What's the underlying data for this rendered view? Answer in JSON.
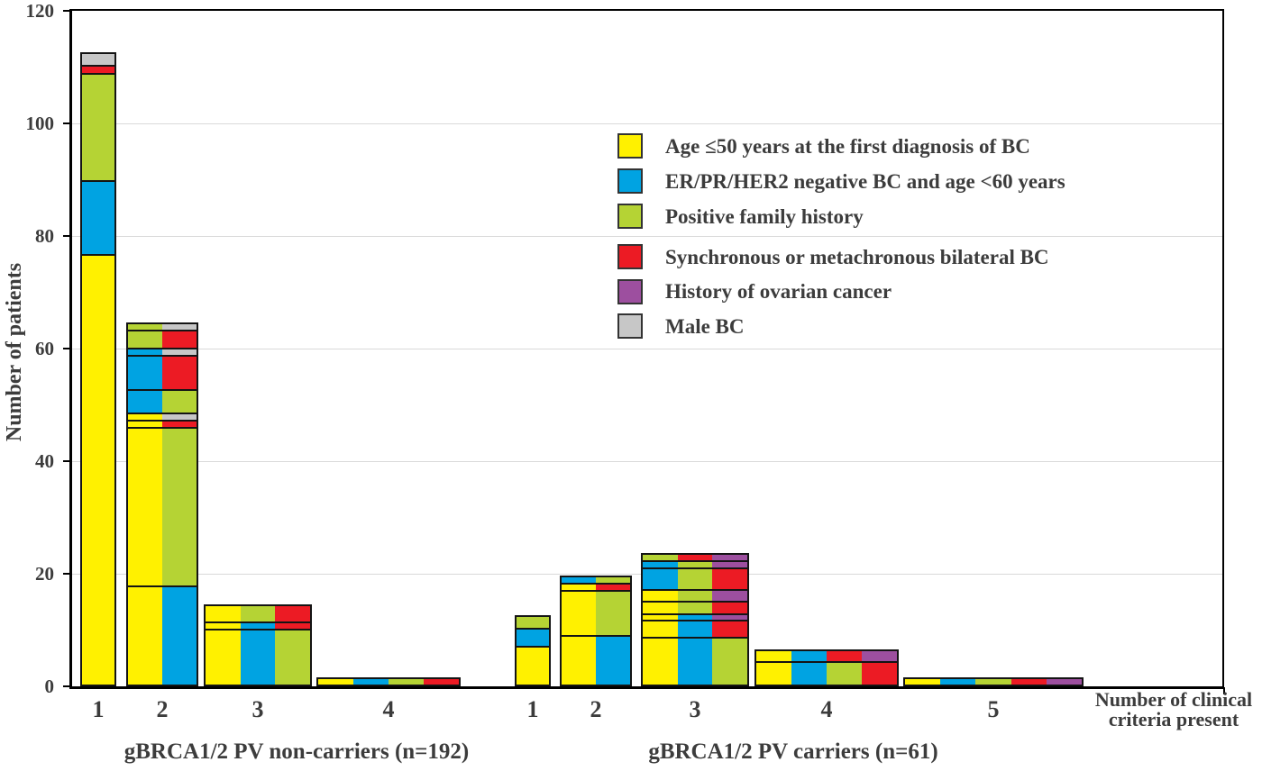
{
  "chart_data": {
    "type": "bar",
    "subtype": "stacked-criteria-combination-bars",
    "title": "",
    "ylabel": "Number of patients",
    "xlabel": "Number of clinical criteria present",
    "xlabel_line1": "Number of clinical",
    "xlabel_line2": "criteria present",
    "ylim": [
      0,
      120
    ],
    "yticks": [
      0,
      20,
      40,
      60,
      80,
      100,
      120
    ],
    "grid": "horizontal",
    "legend_position": "upper-middle",
    "colors": {
      "grid": "#d9d9d9",
      "axis": "#000000",
      "segment_border": "#141414",
      "text": "#3c3c3c"
    },
    "criteria": [
      {
        "key": "age50",
        "label": "Age ≤50 years at the first diagnosis of BC",
        "color": "#FFF100"
      },
      {
        "key": "erprher2",
        "label": "ER/PR/HER2 negative BC and age <60 years",
        "color": "#00A3E2"
      },
      {
        "key": "family",
        "label": "Positive family history",
        "color": "#B5D334"
      },
      {
        "key": "bilateral",
        "label": "Synchronous or metachronous bilateral BC",
        "color": "#EC1B24"
      },
      {
        "key": "ovarian",
        "label": "History of ovarian cancer",
        "color": "#9D4F9F"
      },
      {
        "key": "male",
        "label": "Male BC",
        "color": "#C7C7C7"
      }
    ],
    "groups": [
      {
        "label": "gBRCA1/2 PV non-carriers  (n=192)",
        "bars": [
          {
            "criteria_count": "1",
            "total": 112,
            "bands": [
              {
                "value": 77,
                "combo": [
                  "age50"
                ]
              },
              {
                "value": 13,
                "combo": [
                  "erprher2"
                ]
              },
              {
                "value": 19,
                "combo": [
                  "family"
                ]
              },
              {
                "value": 1,
                "combo": [
                  "bilateral"
                ]
              },
              {
                "value": 2,
                "combo": [
                  "male"
                ]
              }
            ]
          },
          {
            "criteria_count": "2",
            "total": 64,
            "bands": [
              {
                "value": 18,
                "combo": [
                  "age50",
                  "erprher2"
                ]
              },
              {
                "value": 29,
                "combo": [
                  "age50",
                  "family"
                ]
              },
              {
                "value": 1,
                "combo": [
                  "age50",
                  "bilateral"
                ]
              },
              {
                "value": 1,
                "combo": [
                  "age50",
                  "male"
                ]
              },
              {
                "value": 4,
                "combo": [
                  "erprher2",
                  "family"
                ]
              },
              {
                "value": 6,
                "combo": [
                  "erprher2",
                  "bilateral"
                ]
              },
              {
                "value": 1,
                "combo": [
                  "erprher2",
                  "male"
                ]
              },
              {
                "value": 3,
                "combo": [
                  "family",
                  "bilateral"
                ]
              },
              {
                "value": 1,
                "combo": [
                  "family",
                  "male"
                ]
              }
            ]
          },
          {
            "criteria_count": "3",
            "total": 14,
            "bands": [
              {
                "value": 10,
                "combo": [
                  "age50",
                  "erprher2",
                  "family"
                ]
              },
              {
                "value": 1,
                "combo": [
                  "age50",
                  "erprher2",
                  "bilateral"
                ]
              },
              {
                "value": 3,
                "combo": [
                  "age50",
                  "family",
                  "bilateral"
                ]
              }
            ]
          },
          {
            "criteria_count": "4",
            "total": 1,
            "bands": [
              {
                "value": 1,
                "combo": [
                  "age50",
                  "erprher2",
                  "family",
                  "bilateral"
                ]
              }
            ]
          }
        ]
      },
      {
        "label": "gBRCA1/2 PV carriers (n=61)",
        "bars": [
          {
            "criteria_count": "1",
            "total": 12,
            "bands": [
              {
                "value": 7,
                "combo": [
                  "age50"
                ]
              },
              {
                "value": 3,
                "combo": [
                  "erprher2"
                ]
              },
              {
                "value": 2,
                "combo": [
                  "family"
                ]
              }
            ]
          },
          {
            "criteria_count": "2",
            "total": 19,
            "bands": [
              {
                "value": 9,
                "combo": [
                  "age50",
                  "erprher2"
                ]
              },
              {
                "value": 8,
                "combo": [
                  "age50",
                  "family"
                ]
              },
              {
                "value": 1,
                "combo": [
                  "age50",
                  "bilateral"
                ]
              },
              {
                "value": 1,
                "combo": [
                  "erprher2",
                  "family"
                ]
              }
            ]
          },
          {
            "criteria_count": "3",
            "total": 23,
            "bands": [
              {
                "value": 9,
                "combo": [
                  "age50",
                  "erprher2",
                  "family"
                ]
              },
              {
                "value": 3,
                "combo": [
                  "age50",
                  "erprher2",
                  "bilateral"
                ]
              },
              {
                "value": 1,
                "combo": [
                  "age50",
                  "erprher2",
                  "ovarian"
                ]
              },
              {
                "value": 2,
                "combo": [
                  "age50",
                  "family",
                  "bilateral"
                ]
              },
              {
                "value": 2,
                "combo": [
                  "age50",
                  "family",
                  "ovarian"
                ]
              },
              {
                "value": 4,
                "combo": [
                  "erprher2",
                  "family",
                  "bilateral"
                ]
              },
              {
                "value": 1,
                "combo": [
                  "erprher2",
                  "family",
                  "ovarian"
                ]
              },
              {
                "value": 1,
                "combo": [
                  "family",
                  "bilateral",
                  "ovarian"
                ]
              }
            ]
          },
          {
            "criteria_count": "4",
            "total": 6,
            "bands": [
              {
                "value": 4,
                "combo": [
                  "age50",
                  "erprher2",
                  "family",
                  "bilateral"
                ]
              },
              {
                "value": 2,
                "combo": [
                  "age50",
                  "erprher2",
                  "bilateral",
                  "ovarian"
                ]
              }
            ]
          },
          {
            "criteria_count": "5",
            "total": 1,
            "bands": [
              {
                "value": 1,
                "combo": [
                  "age50",
                  "erprher2",
                  "family",
                  "bilateral",
                  "ovarian"
                ]
              }
            ]
          }
        ]
      }
    ]
  }
}
